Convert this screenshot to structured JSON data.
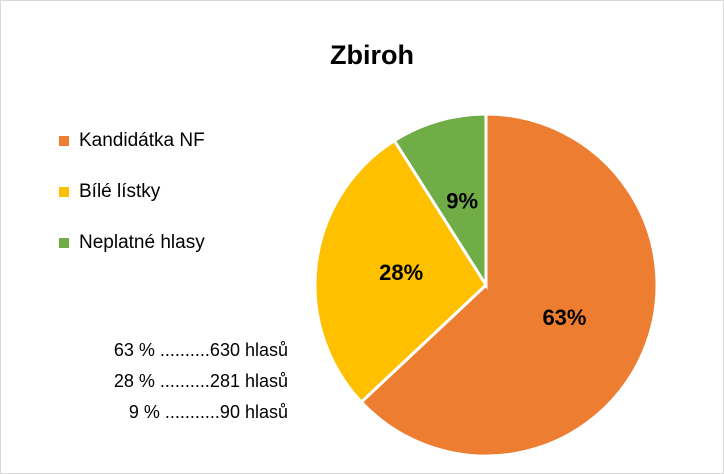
{
  "chart_data": {
    "type": "pie",
    "title": "Zbiroh",
    "categories": [
      "Kandidátka NF",
      "Bílé lístky",
      "Neplatné hlasy"
    ],
    "values": [
      63,
      28,
      9
    ],
    "value_labels": [
      "63%",
      "28%",
      "9%"
    ],
    "colors": [
      "#ed7d31",
      "#ffc000",
      "#70ad47"
    ],
    "legend": "left",
    "annotations": [
      "63 % ..........630 hlasů",
      "28 % ..........281 hlasů",
      "9 % ...........90 hlasů"
    ]
  }
}
